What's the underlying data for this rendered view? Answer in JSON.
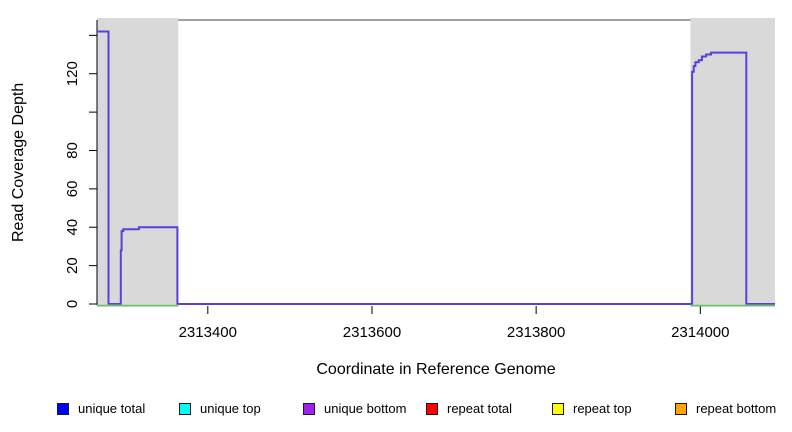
{
  "chart_data": {
    "type": "line",
    "title": "",
    "xlabel": "Coordinate in Reference Genome",
    "ylabel": "Read Coverage Depth",
    "xlim": [
      2313265,
      2314091
    ],
    "ylim": [
      0,
      148
    ],
    "xticks": [
      2313400,
      2313600,
      2313800,
      2314000
    ],
    "xtick_labels": [
      "2313400",
      "2313600",
      "2313800",
      "2314000"
    ],
    "yticks": [
      0,
      20,
      40,
      60,
      80,
      100,
      120,
      140
    ],
    "ytick_labels": [
      "0",
      "20",
      "40",
      "60",
      "80",
      "",
      "120",
      ""
    ],
    "grid": false,
    "colors": {
      "frame": "#808080",
      "region": "#d9d9d9",
      "axis": "#000000",
      "coverage_curve": "#5b3fd9",
      "baseline": "#6dbb6d"
    },
    "shaded_regions": [
      {
        "x0": 2313265,
        "x1": 2313364
      },
      {
        "x0": 2313988,
        "x1": 2314091
      }
    ],
    "series": [
      {
        "name": "coverage-step-curve",
        "color": "#5b3fd9",
        "points": [
          [
            2313265,
            142
          ],
          [
            2313279,
            142
          ],
          [
            2313279,
            0
          ],
          [
            2313294,
            0
          ],
          [
            2313294,
            28
          ],
          [
            2313295,
            28
          ],
          [
            2313295,
            38
          ],
          [
            2313297,
            38
          ],
          [
            2313297,
            39
          ],
          [
            2313316,
            39
          ],
          [
            2313316,
            40
          ],
          [
            2313363,
            40
          ],
          [
            2313363,
            0
          ],
          [
            2313990,
            0
          ],
          [
            2313990,
            121
          ],
          [
            2313992,
            121
          ],
          [
            2313992,
            124
          ],
          [
            2313994,
            124
          ],
          [
            2313994,
            126
          ],
          [
            2313998,
            126
          ],
          [
            2313998,
            127
          ],
          [
            2314002,
            127
          ],
          [
            2314002,
            129
          ],
          [
            2314007,
            129
          ],
          [
            2314007,
            130
          ],
          [
            2314013,
            130
          ],
          [
            2314013,
            131
          ],
          [
            2314056,
            131
          ],
          [
            2314056,
            0
          ],
          [
            2314091,
            0
          ]
        ]
      },
      {
        "name": "zero-baseline-green",
        "color": "#6dbb6d",
        "y": 0,
        "segments": [
          [
            2313265,
            2313364
          ],
          [
            2313988,
            2314091
          ]
        ]
      }
    ],
    "legend": {
      "position": "bottom",
      "entries": [
        {
          "label": "unique total",
          "color": "#0000ff"
        },
        {
          "label": "unique top",
          "color": "#00ffff"
        },
        {
          "label": "unique bottom",
          "color": "#a020f0"
        },
        {
          "label": "repeat total",
          "color": "#ff0000"
        },
        {
          "label": "repeat top",
          "color": "#ffff00"
        },
        {
          "label": "repeat bottom",
          "color": "#ffa500"
        }
      ]
    }
  }
}
